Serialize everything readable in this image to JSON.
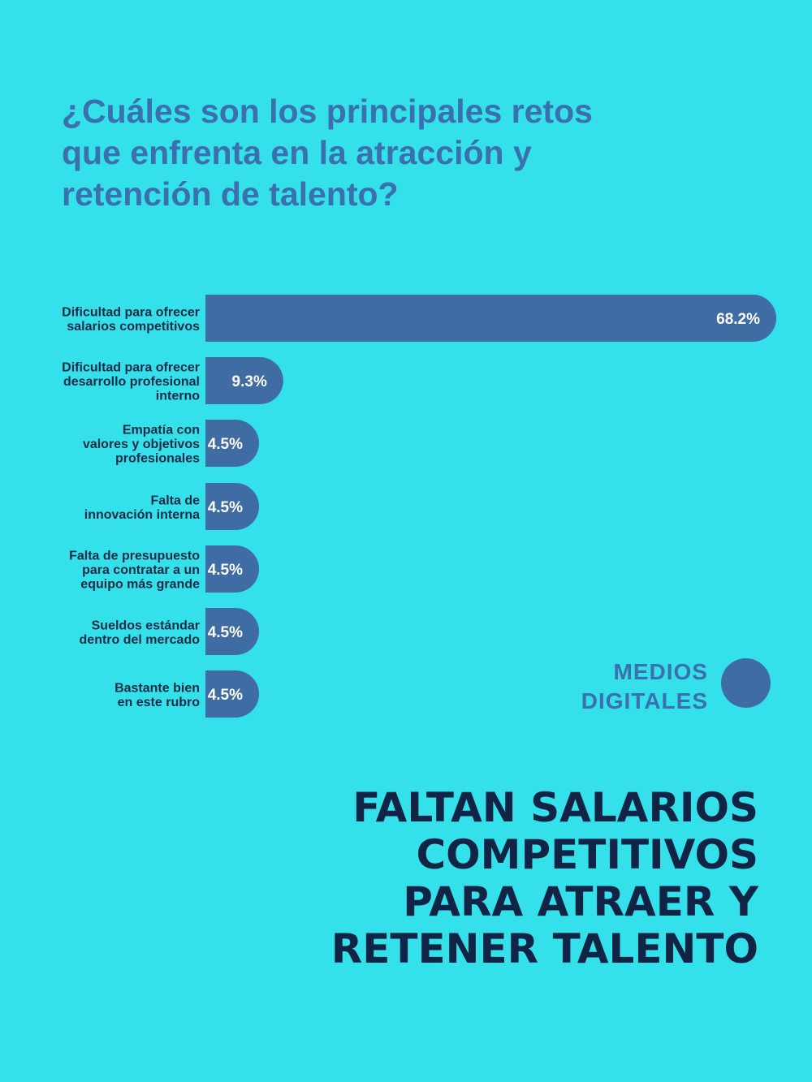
{
  "chart_data": {
    "type": "bar",
    "orientation": "horizontal",
    "title": "¿Cuáles son los principales retos que enfrenta en la atracción y retención de talento?",
    "title_lines": [
      "¿Cuáles son los principales retos",
      "que enfrenta en la atracción y",
      "retención de talento?"
    ],
    "categories": [
      [
        "Dificultad para ofrecer",
        "salarios competitivos"
      ],
      [
        "Dificultad para ofrecer",
        "desarrollo profesional",
        "interno"
      ],
      [
        "Empatía con",
        "valores y objetivos",
        "profesionales"
      ],
      [
        "Falta de",
        "innovación interna"
      ],
      [
        "Falta de presupuesto",
        "para contratar a un",
        "equipo más grande"
      ],
      [
        "Sueldos estándar",
        "dentro del mercado"
      ],
      [
        "Bastante bien",
        "en este rubro"
      ]
    ],
    "values": [
      68.2,
      9.3,
      4.5,
      4.5,
      4.5,
      4.5,
      4.5
    ],
    "value_labels": [
      "68.2%",
      "9.3%",
      "4.5%",
      "4.5%",
      "4.5%",
      "4.5%",
      "4.5%"
    ],
    "unit": "%",
    "bar_color": "#3f6ca3",
    "grid": false,
    "legend": "none"
  },
  "brand": {
    "lines": [
      "MEDIOS",
      "DIGITALES"
    ],
    "color": "#3b6fae"
  },
  "headline": {
    "lines": [
      "FALTAN SALARIOS",
      "COMPETITIVOS",
      "PARA ATRAER Y",
      "RETENER TALENTO"
    ],
    "color": "#122445"
  },
  "colors": {
    "background": "#34e0e9",
    "question_text": "#3b6fae",
    "category_text": "#1a2b45",
    "value_text": "#ffffff"
  }
}
